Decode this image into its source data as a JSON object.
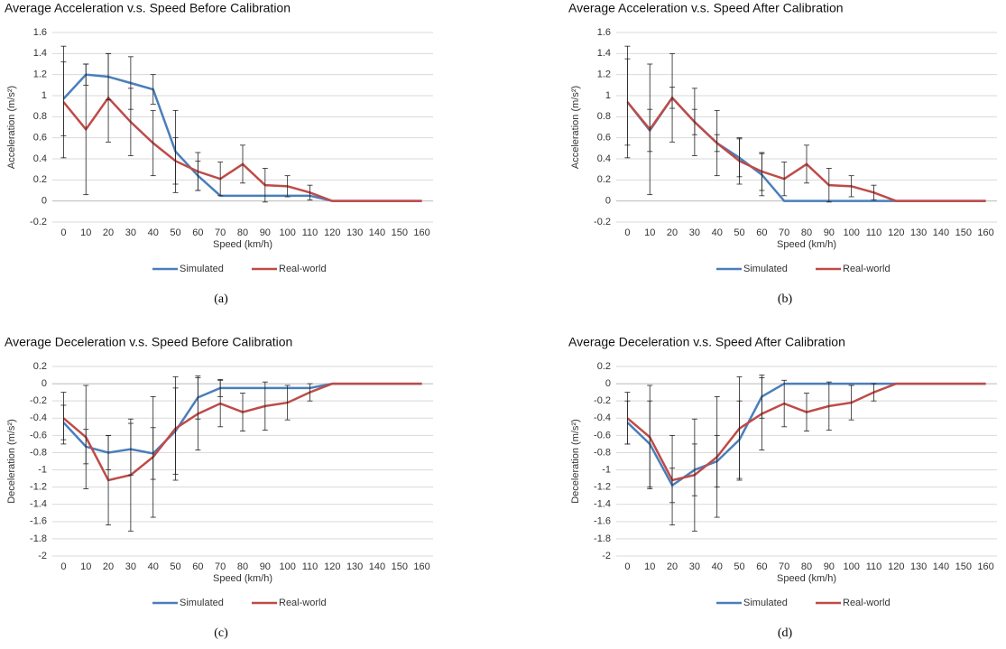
{
  "chart_data": [
    {
      "type": "line",
      "title": "Average Acceleration v.s. Speed Before Calibration",
      "x_label": "Speed (km/h)",
      "y_label": "Acceleration (m/s²)",
      "caption": "(a)",
      "categories": [
        "0",
        "10",
        "20",
        "30",
        "40",
        "50",
        "60",
        "70",
        "80",
        "90",
        "100",
        "110",
        "120",
        "130",
        "140",
        "150",
        "160"
      ],
      "series": [
        {
          "name": "Simulated",
          "color": "#4a7ebb",
          "values": [
            0.97,
            1.2,
            1.18,
            1.12,
            1.06,
            0.47,
            0.24,
            0.05,
            0.05,
            0.05,
            0.05,
            0.05,
            0,
            0,
            0,
            0,
            0
          ],
          "errors": [
            0.35,
            0.1,
            0.22,
            0.25,
            0.14,
            0.39,
            0.14,
            null,
            null,
            null,
            null,
            null,
            null,
            null,
            null,
            null,
            null
          ]
        },
        {
          "name": "Real-world",
          "color": "#be4b48",
          "values": [
            0.94,
            0.68,
            0.98,
            0.75,
            0.55,
            0.38,
            0.28,
            0.21,
            0.35,
            0.15,
            0.14,
            0.08,
            0,
            0,
            0,
            0,
            0
          ],
          "errors": [
            0.53,
            0.62,
            0.42,
            0.32,
            0.31,
            0.22,
            0.18,
            0.16,
            0.18,
            0.16,
            0.1,
            0.07,
            null,
            null,
            null,
            null,
            null
          ]
        }
      ],
      "ylim": [
        -0.2,
        1.6
      ],
      "yticks": [
        -0.2,
        0,
        0.2,
        0.4,
        0.6,
        0.8,
        1,
        1.2,
        1.4,
        1.6
      ],
      "grid": true,
      "legend": "bottom"
    },
    {
      "type": "line",
      "title": "Average Acceleration v.s. Speed After Calibration",
      "x_label": "Speed (km/h)",
      "y_label": "Acceleration (m/s²)",
      "caption": "(b)",
      "categories": [
        "0",
        "10",
        "20",
        "30",
        "40",
        "50",
        "60",
        "70",
        "80",
        "90",
        "100",
        "110",
        "120",
        "130",
        "140",
        "150",
        "160"
      ],
      "series": [
        {
          "name": "Simulated",
          "color": "#4a7ebb",
          "values": [
            0.94,
            0.67,
            0.98,
            0.75,
            0.55,
            0.41,
            0.25,
            0,
            0,
            0,
            0,
            0,
            0,
            0,
            0,
            0,
            0
          ],
          "errors": [
            0.41,
            0.2,
            0.1,
            0.12,
            0.08,
            0.18,
            0.2,
            null,
            null,
            null,
            null,
            null,
            null,
            null,
            null,
            null,
            null
          ]
        },
        {
          "name": "Real-world",
          "color": "#be4b48",
          "values": [
            0.94,
            0.68,
            0.98,
            0.75,
            0.55,
            0.38,
            0.28,
            0.21,
            0.35,
            0.15,
            0.14,
            0.08,
            0,
            0,
            0,
            0,
            0
          ],
          "errors": [
            0.53,
            0.62,
            0.42,
            0.32,
            0.31,
            0.22,
            0.18,
            0.16,
            0.18,
            0.16,
            0.1,
            0.07,
            null,
            null,
            null,
            null,
            null
          ]
        }
      ],
      "ylim": [
        -0.2,
        1.6
      ],
      "yticks": [
        -0.2,
        0,
        0.2,
        0.4,
        0.6,
        0.8,
        1,
        1.2,
        1.4,
        1.6
      ],
      "grid": true,
      "legend": "bottom"
    },
    {
      "type": "line",
      "title": "Average Deceleration v.s. Speed Before Calibration",
      "x_label": "Speed (km/h)",
      "y_label": "Deceleration (m/s²)",
      "caption": "(c)",
      "categories": [
        "0",
        "10",
        "20",
        "30",
        "40",
        "50",
        "60",
        "70",
        "80",
        "90",
        "100",
        "110",
        "120",
        "130",
        "140",
        "150",
        "160"
      ],
      "series": [
        {
          "name": "Simulated",
          "color": "#4a7ebb",
          "values": [
            -0.45,
            -0.73,
            -0.8,
            -0.76,
            -0.81,
            -0.55,
            -0.16,
            -0.05,
            -0.05,
            -0.05,
            -0.05,
            -0.05,
            0,
            0,
            0,
            0,
            0
          ],
          "errors": [
            0.2,
            0.2,
            0.2,
            0.3,
            0.3,
            0.5,
            0.25,
            0.1,
            null,
            null,
            null,
            null,
            null,
            null,
            null,
            null,
            null
          ]
        },
        {
          "name": "Real-world",
          "color": "#be4b48",
          "values": [
            -0.4,
            -0.62,
            -1.12,
            -1.06,
            -0.85,
            -0.52,
            -0.35,
            -0.23,
            -0.33,
            -0.26,
            -0.22,
            -0.1,
            0,
            0,
            0,
            0,
            0
          ],
          "errors": [
            0.3,
            0.6,
            0.52,
            0.65,
            0.7,
            0.6,
            0.42,
            0.27,
            0.22,
            0.28,
            0.2,
            0.1,
            null,
            null,
            null,
            null,
            null
          ]
        }
      ],
      "ylim": [
        -2,
        0.2
      ],
      "yticks": [
        -2,
        -1.8,
        -1.6,
        -1.4,
        -1.2,
        -1,
        -0.8,
        -0.6,
        -0.4,
        -0.2,
        0,
        0.2
      ],
      "grid": true,
      "legend": "bottom"
    },
    {
      "type": "line",
      "title": "Average Deceleration v.s. Speed After Calibration",
      "x_label": "Speed (km/h)",
      "y_label": "Deceleration (m/s²)",
      "caption": "(d)",
      "categories": [
        "0",
        "10",
        "20",
        "30",
        "40",
        "50",
        "60",
        "70",
        "80",
        "90",
        "100",
        "110",
        "120",
        "130",
        "140",
        "150",
        "160"
      ],
      "series": [
        {
          "name": "Simulated",
          "color": "#4a7ebb",
          "values": [
            -0.45,
            -0.7,
            -1.18,
            -1.0,
            -0.9,
            -0.65,
            -0.15,
            0,
            0,
            0,
            0,
            0,
            0,
            0,
            0,
            0,
            0
          ],
          "errors": [
            0.25,
            0.5,
            0.2,
            0.3,
            0.3,
            0.45,
            0.25,
            null,
            null,
            null,
            null,
            null,
            null,
            null,
            null,
            null,
            null
          ]
        },
        {
          "name": "Real-world",
          "color": "#be4b48",
          "values": [
            -0.4,
            -0.62,
            -1.12,
            -1.06,
            -0.85,
            -0.52,
            -0.35,
            -0.23,
            -0.33,
            -0.26,
            -0.22,
            -0.1,
            0,
            0,
            0,
            0,
            0
          ],
          "errors": [
            0.3,
            0.6,
            0.52,
            0.65,
            0.7,
            0.6,
            0.42,
            0.27,
            0.22,
            0.28,
            0.2,
            0.1,
            null,
            null,
            null,
            null,
            null
          ]
        }
      ],
      "ylim": [
        -2,
        0.2
      ],
      "yticks": [
        -2,
        -1.8,
        -1.6,
        -1.4,
        -1.2,
        -1,
        -0.8,
        -0.6,
        -0.4,
        -0.2,
        0,
        0.2
      ],
      "grid": true,
      "legend": "bottom"
    }
  ]
}
